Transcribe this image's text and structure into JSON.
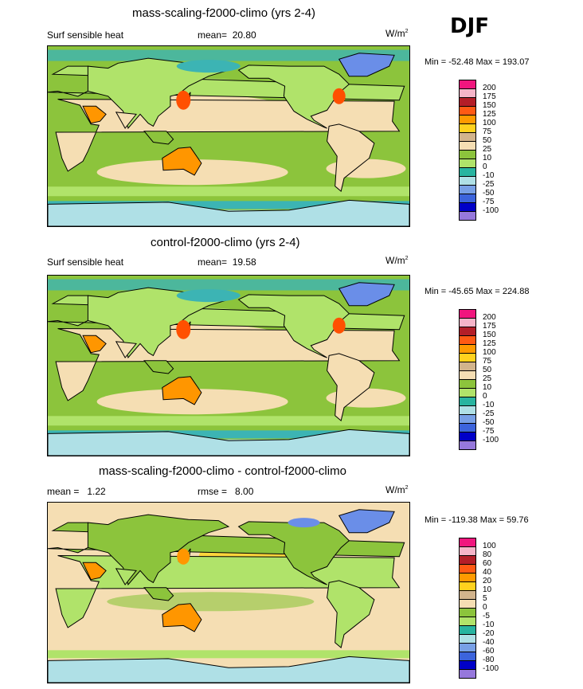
{
  "season": "DJF",
  "units_base": "W/m",
  "units_sup": "2",
  "colors": {
    "ocean": "#8cc43c",
    "warm_light": "#f5deb3",
    "cyan": "#3cb4b4",
    "light_cyan": "#afe0e6",
    "light_green": "#b0e36a",
    "yellow": "#ffd21e",
    "orange": "#ff9600",
    "red_orange": "#ff5000",
    "dark_red": "#c81e1e",
    "blue": "#6a8ee8",
    "purple": "#8c78e6"
  },
  "panels": [
    {
      "title": "mass-scaling-f2000-climo (yrs 2-4)",
      "left_label": "Surf sensible heat",
      "stat_label": "mean=",
      "stat_value": "20.80",
      "minmax": "Min = -52.48 Max = 193.07",
      "legend": {
        "levels": [
          "200",
          "175",
          "150",
          "125",
          "100",
          "75",
          "50",
          "25",
          "10",
          "0",
          "-10",
          "-25",
          "-50",
          "-75",
          "-100"
        ],
        "colors": [
          "#f0167e",
          "#f5b4c8",
          "#b41e28",
          "#ff5a14",
          "#ff9a00",
          "#ffd21e",
          "#d2b48c",
          "#f5deb3",
          "#8cc43c",
          "#b0e36a",
          "#28b4a0",
          "#afe0e6",
          "#78a0e6",
          "#3c64dc",
          "#0000c8",
          "#9678dc"
        ]
      }
    },
    {
      "title": "control-f2000-climo (yrs 2-4)",
      "left_label": "Surf sensible heat",
      "stat_label": "mean=",
      "stat_value": "19.58",
      "minmax": "Min = -45.65 Max = 224.88",
      "legend": {
        "levels": [
          "200",
          "175",
          "150",
          "125",
          "100",
          "75",
          "50",
          "25",
          "10",
          "0",
          "-10",
          "-25",
          "-50",
          "-75",
          "-100"
        ],
        "colors": [
          "#f0167e",
          "#f5b4c8",
          "#b41e28",
          "#ff5a14",
          "#ff9a00",
          "#ffd21e",
          "#d2b48c",
          "#f5deb3",
          "#8cc43c",
          "#b0e36a",
          "#28b4a0",
          "#afe0e6",
          "#78a0e6",
          "#3c64dc",
          "#0000c8",
          "#9678dc"
        ]
      }
    },
    {
      "title": "mass-scaling-f2000-climo - control-f2000-climo",
      "left_label": "mean =   1.22",
      "stat_label": "rmse =",
      "stat_value": "8.00",
      "minmax": "Min = -119.38 Max =  59.76",
      "legend": {
        "levels": [
          "100",
          "80",
          "60",
          "40",
          "20",
          "10",
          "5",
          "0",
          "-5",
          "-10",
          "-20",
          "-40",
          "-60",
          "-80",
          "-100"
        ],
        "colors": [
          "#f0167e",
          "#f5b4c8",
          "#b41e28",
          "#ff5a14",
          "#ff9a00",
          "#ffd21e",
          "#d2b48c",
          "#f5deb3",
          "#8cc43c",
          "#b0e36a",
          "#28b4a0",
          "#afe0e6",
          "#78a0e6",
          "#3c64dc",
          "#0000c8",
          "#9678dc"
        ]
      }
    }
  ]
}
